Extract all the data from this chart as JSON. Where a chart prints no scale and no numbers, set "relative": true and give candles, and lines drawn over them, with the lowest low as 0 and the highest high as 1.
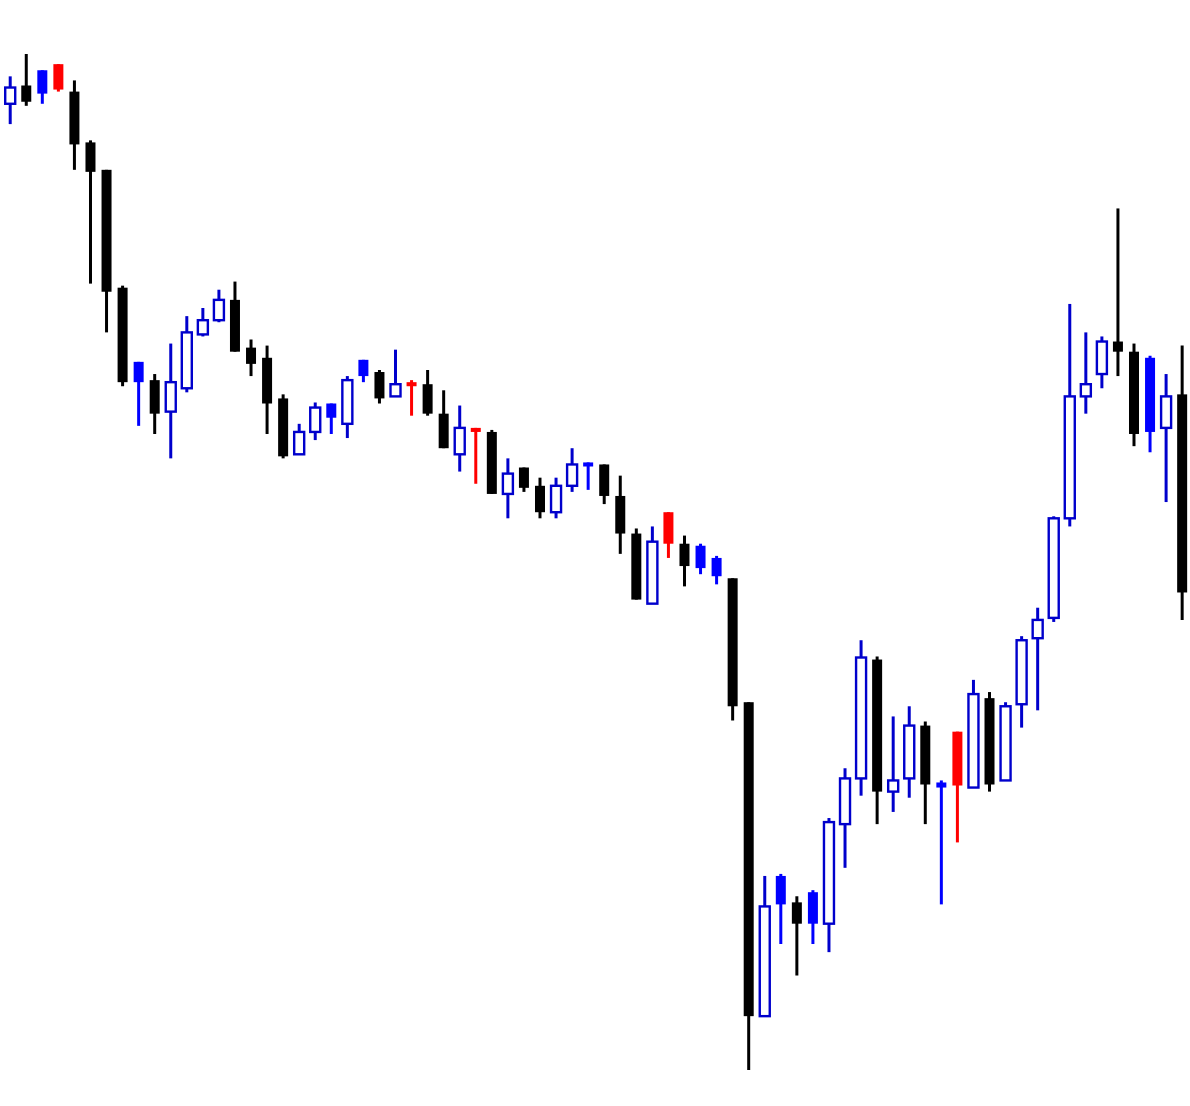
{
  "chart_data": {
    "type": "candlestick",
    "relative": true,
    "categories": [
      null,
      null,
      null,
      null,
      null,
      null,
      null,
      null,
      null,
      null,
      null,
      null,
      null,
      null,
      null,
      null,
      null,
      null,
      null,
      null,
      null,
      null,
      null,
      null,
      null,
      null,
      null,
      null,
      null,
      null,
      null,
      null,
      null,
      null,
      null,
      null,
      null,
      null,
      null,
      null,
      null,
      null,
      null,
      null,
      null,
      null,
      null,
      null,
      null,
      null,
      null,
      null,
      null,
      null,
      null,
      null,
      null,
      null,
      null,
      null,
      null,
      null,
      null,
      null,
      null,
      null,
      null,
      null,
      null,
      null,
      null,
      null,
      null,
      null
    ],
    "ohlc": [
      [
        0.951,
        0.978,
        0.931,
        0.967
      ],
      [
        0.969,
        1,
        0.949,
        0.953
      ],
      [
        0.984,
        0.984,
        0.951,
        0.961
      ],
      [
        0.99,
        0.99,
        0.963,
        0.965
      ],
      [
        0.963,
        0.974,
        0.886,
        0.911
      ],
      [
        0.913,
        0.915,
        0.774,
        0.884
      ],
      [
        0.886,
        0.886,
        0.726,
        0.766
      ],
      [
        0.77,
        0.772,
        0.673,
        0.677
      ],
      [
        0.697,
        0.697,
        0.634,
        0.677
      ],
      [
        0.679,
        0.685,
        0.626,
        0.646
      ],
      [
        0.648,
        0.715,
        0.602,
        0.677
      ],
      [
        0.671,
        0.742,
        0.667,
        0.726
      ],
      [
        0.724,
        0.75,
        0.722,
        0.738
      ],
      [
        0.738,
        0.768,
        0.736,
        0.758
      ],
      [
        0.758,
        0.776,
        0.707,
        0.707
      ],
      [
        0.711,
        0.719,
        0.683,
        0.695
      ],
      [
        0.701,
        0.713,
        0.626,
        0.656
      ],
      [
        0.661,
        0.665,
        0.602,
        0.604
      ],
      [
        0.606,
        0.636,
        0.606,
        0.628
      ],
      [
        0.628,
        0.657,
        0.62,
        0.652
      ],
      [
        0.656,
        0.656,
        0.626,
        0.642
      ],
      [
        0.636,
        0.683,
        0.622,
        0.679
      ],
      [
        0.699,
        0.699,
        0.677,
        0.683
      ],
      [
        0.687,
        0.689,
        0.656,
        0.661
      ],
      [
        0.663,
        0.709,
        0.663,
        0.675
      ],
      [
        0.677,
        0.679,
        0.644,
        0.673
      ],
      [
        0.675,
        0.689,
        0.644,
        0.646
      ],
      [
        0.646,
        0.669,
        0.612,
        0.612
      ],
      [
        0.606,
        0.654,
        0.589,
        0.632
      ],
      [
        0.632,
        0.632,
        0.577,
        0.628
      ],
      [
        0.628,
        0.63,
        0.567,
        0.567
      ],
      [
        0.567,
        0.602,
        0.543,
        0.587
      ],
      [
        0.593,
        0.593,
        0.569,
        0.573
      ],
      [
        0.575,
        0.583,
        0.543,
        0.549
      ],
      [
        0.549,
        0.583,
        0.543,
        0.575
      ],
      [
        0.575,
        0.612,
        0.569,
        0.596
      ],
      [
        0.598,
        0.598,
        0.571,
        0.594
      ],
      [
        0.596,
        0.596,
        0.557,
        0.565
      ],
      [
        0.565,
        0.585,
        0.508,
        0.528
      ],
      [
        0.528,
        0.533,
        0.463,
        0.463
      ],
      [
        0.459,
        0.535,
        0.459,
        0.52
      ],
      [
        0.549,
        0.549,
        0.504,
        0.518
      ],
      [
        0.518,
        0.526,
        0.476,
        0.496
      ],
      [
        0.516,
        0.518,
        0.488,
        0.494
      ],
      [
        0.504,
        0.506,
        0.478,
        0.486
      ],
      [
        0.484,
        0.484,
        0.344,
        0.358
      ],
      [
        0.362,
        0.362,
        0,
        0.053
      ],
      [
        0.053,
        0.191,
        0.053,
        0.161
      ],
      [
        0.191,
        0.193,
        0.124,
        0.163
      ],
      [
        0.165,
        0.171,
        0.093,
        0.144
      ],
      [
        0.175,
        0.177,
        0.124,
        0.144
      ],
      [
        0.144,
        0.248,
        0.116,
        0.244
      ],
      [
        0.242,
        0.297,
        0.199,
        0.287
      ],
      [
        0.287,
        0.423,
        0.27,
        0.406
      ],
      [
        0.404,
        0.407,
        0.242,
        0.274
      ],
      [
        0.274,
        0.348,
        0.254,
        0.285
      ],
      [
        0.287,
        0.358,
        0.268,
        0.339
      ],
      [
        0.339,
        0.343,
        0.242,
        0.281
      ],
      [
        0.283,
        0.285,
        0.163,
        0.278
      ],
      [
        0.333,
        0.333,
        0.224,
        0.28
      ],
      [
        0.278,
        0.384,
        0.278,
        0.37
      ],
      [
        0.366,
        0.372,
        0.274,
        0.281
      ],
      [
        0.285,
        0.362,
        0.285,
        0.358
      ],
      [
        0.36,
        0.427,
        0.337,
        0.423
      ],
      [
        0.425,
        0.455,
        0.354,
        0.443
      ],
      [
        0.445,
        0.545,
        0.441,
        0.543
      ],
      [
        0.543,
        0.754,
        0.535,
        0.663
      ],
      [
        0.663,
        0.726,
        0.646,
        0.675
      ],
      [
        0.685,
        0.722,
        0.671,
        0.717
      ],
      [
        0.717,
        0.848,
        0.683,
        0.707
      ],
      [
        0.707,
        0.715,
        0.614,
        0.626
      ],
      [
        0.701,
        0.703,
        0.608,
        0.628
      ],
      [
        0.632,
        0.685,
        0.559,
        0.663
      ],
      [
        0.665,
        0.713,
        0.443,
        0.47
      ]
    ],
    "colors": [
      "#0000cc",
      "#000000",
      "#0000ff",
      "#ff0000",
      "#000000",
      "#000000",
      "#000000",
      "#000000",
      "#0000ff",
      "#000000",
      "#0000cc",
      "#0000cc",
      "#0000cc",
      "#0000cc",
      "#000000",
      "#000000",
      "#000000",
      "#000000",
      "#0000cc",
      "#0000cc",
      "#0000ff",
      "#0000cc",
      "#0000ff",
      "#000000",
      "#0000cc",
      "#ff0000",
      "#000000",
      "#000000",
      "#0000cc",
      "#ff0000",
      "#000000",
      "#0000cc",
      "#000000",
      "#000000",
      "#0000cc",
      "#0000cc",
      "#0000ff",
      "#000000",
      "#000000",
      "#000000",
      "#0000cc",
      "#ff0000",
      "#000000",
      "#0000ff",
      "#0000ff",
      "#000000",
      "#000000",
      "#0000cc",
      "#0000ff",
      "#000000",
      "#0000ff",
      "#0000cc",
      "#0000cc",
      "#0000cc",
      "#000000",
      "#0000cc",
      "#0000cc",
      "#000000",
      "#0000ff",
      "#ff0000",
      "#0000cc",
      "#000000",
      "#0000cc",
      "#0000cc",
      "#0000cc",
      "#0000cc",
      "#0000cc",
      "#0000cc",
      "#0000cc",
      "#000000",
      "#000000",
      "#0000ff",
      "#0000cc",
      "#000000"
    ]
  }
}
